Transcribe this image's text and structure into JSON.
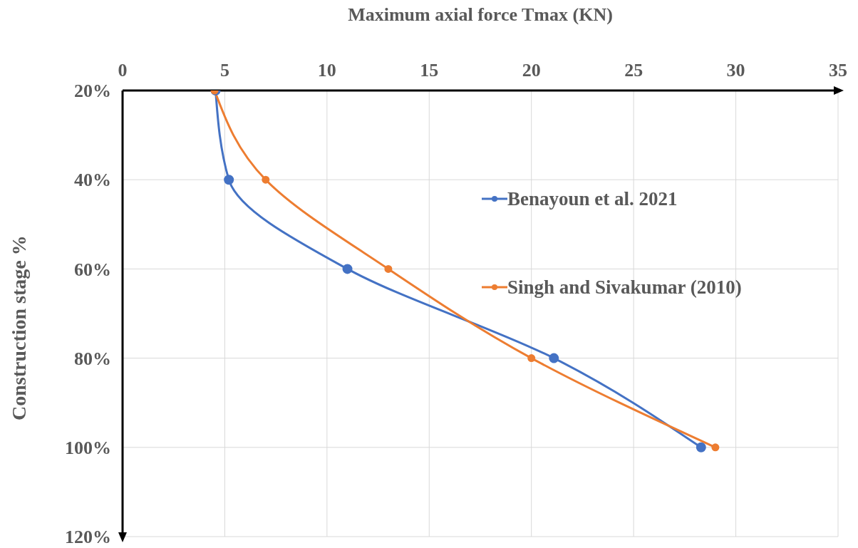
{
  "chart_data": {
    "type": "line",
    "orientation": "horizontal",
    "xlabel": "Maximum axial force Tmax (KN)",
    "ylabel": "Construction stage %",
    "x": [
      20,
      40,
      60,
      80,
      100
    ],
    "series": [
      {
        "name": "Benayoun et al. 2021",
        "color": "#4472c4",
        "values": [
          4.55,
          5.2,
          11.0,
          21.1,
          28.3
        ]
      },
      {
        "name": "Singh and Sivakumar (2010)",
        "color": "#ed7d31",
        "values": [
          4.5,
          7.0,
          13.0,
          20.0,
          29.0
        ]
      }
    ],
    "xlim": [
      0,
      35
    ],
    "xticks": [
      0,
      5,
      10,
      15,
      20,
      25,
      30,
      35
    ],
    "ylim": [
      120,
      20
    ],
    "yticks": [
      {
        "value": 20,
        "label": "20%"
      },
      {
        "value": 40,
        "label": "40%"
      },
      {
        "value": 60,
        "label": "60%"
      },
      {
        "value": 80,
        "label": "80%"
      },
      {
        "value": 100,
        "label": "100%"
      },
      {
        "value": 120,
        "label": "120%"
      }
    ],
    "grid": true,
    "legend": "right",
    "marker": "circle",
    "line_style": "solid"
  }
}
